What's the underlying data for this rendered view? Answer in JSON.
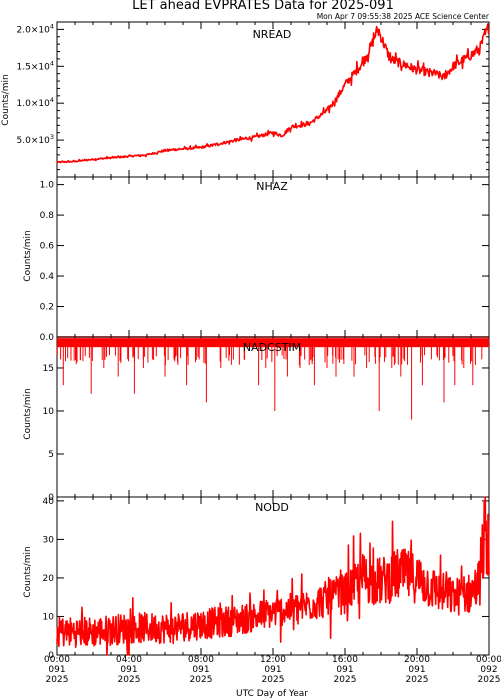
{
  "title": "LET ahead EVPRATES Data for 2025-091",
  "stamp": "Mon Apr  7 09:55:38 2025 ACE Science Center",
  "xlabel": "UTC Day of Year",
  "colors": {
    "trace": "#ff0000",
    "panel_label": "#0000cc",
    "axis": "#000000"
  },
  "time_ticks": [
    {
      "h": 0,
      "l1": "00:00",
      "l2": "091",
      "l3": "2025"
    },
    {
      "h": 4,
      "l1": "04:00",
      "l2": "091",
      "l3": "2025"
    },
    {
      "h": 8,
      "l1": "08:00",
      "l2": "091",
      "l3": "2025"
    },
    {
      "h": 12,
      "l1": "12:00",
      "l2": "091",
      "l3": "2025"
    },
    {
      "h": 16,
      "l1": "16:00",
      "l2": "091",
      "l3": "2025"
    },
    {
      "h": 20,
      "l1": "20:00",
      "l2": "091",
      "l3": "2025"
    },
    {
      "h": 24,
      "l1": "00:00",
      "l2": "092",
      "l3": "2025"
    }
  ],
  "chart_data": [
    {
      "type": "line",
      "name": "NREAD",
      "ylabel": "Counts/min",
      "ylim": [
        0,
        21000
      ],
      "ytick_labels": [
        {
          "v": 5000,
          "m": "5.0",
          "e": "3"
        },
        {
          "v": 10000,
          "m": "1.0",
          "e": "4"
        },
        {
          "v": 15000,
          "m": "1.5",
          "e": "4"
        },
        {
          "v": 20000,
          "m": "2.0",
          "e": "4"
        }
      ],
      "x_hours": [
        0,
        1,
        2,
        3,
        4,
        5,
        6,
        7,
        8,
        9,
        10,
        11,
        12,
        12.5,
        13,
        14,
        15,
        15.5,
        16,
        17,
        17.5,
        17.8,
        18,
        18.5,
        19,
        20,
        21,
        21.5,
        22,
        23,
        23.5,
        24
      ],
      "values": [
        2000,
        2100,
        2400,
        2600,
        2800,
        3000,
        3600,
        3800,
        4000,
        4500,
        5000,
        5400,
        6000,
        5600,
        6800,
        7200,
        9000,
        10500,
        12500,
        15500,
        18000,
        20000,
        19000,
        16000,
        15500,
        14500,
        14000,
        13500,
        15000,
        16500,
        17500,
        20500
      ],
      "noise": 0.05
    },
    {
      "type": "line",
      "name": "NHAZ",
      "ylabel": "Counts/min",
      "ylim": [
        0,
        1.05
      ],
      "yticks": [
        0.0,
        0.2,
        0.4,
        0.6,
        0.8,
        1.0
      ],
      "ytick_labels": [
        "0.0",
        "0.2",
        "0.4",
        "0.6",
        "0.8",
        "1.0"
      ],
      "x_hours": [
        0,
        24
      ],
      "values": [
        0,
        0
      ]
    },
    {
      "type": "line",
      "name": "NADCSTIM",
      "ylabel": "Counts/min",
      "ylim": [
        0,
        18.6
      ],
      "yticks": [
        0,
        5,
        10,
        15
      ],
      "ytick_labels": [
        "0",
        "5",
        "10",
        "15"
      ],
      "baseline": 18,
      "dips": [
        [
          0.2,
          16
        ],
        [
          0.35,
          13
        ],
        [
          1.3,
          16
        ],
        [
          1.9,
          12
        ],
        [
          2.6,
          15
        ],
        [
          3.4,
          14
        ],
        [
          4.3,
          12
        ],
        [
          4.8,
          15
        ],
        [
          5.3,
          16
        ],
        [
          6.0,
          14
        ],
        [
          6.5,
          16
        ],
        [
          7.2,
          13
        ],
        [
          7.9,
          16
        ],
        [
          8.3,
          11
        ],
        [
          9.1,
          15
        ],
        [
          9.8,
          16
        ],
        [
          10.4,
          16
        ],
        [
          11.2,
          13
        ],
        [
          11.6,
          15
        ],
        [
          12.1,
          10
        ],
        [
          12.8,
          14
        ],
        [
          13.5,
          15
        ],
        [
          14.3,
          13
        ],
        [
          15.0,
          15
        ],
        [
          15.5,
          14
        ],
        [
          15.9,
          16
        ],
        [
          16.5,
          14
        ],
        [
          17.2,
          15
        ],
        [
          17.9,
          10
        ],
        [
          18.6,
          15
        ],
        [
          19.1,
          14
        ],
        [
          19.7,
          9
        ],
        [
          20.3,
          13
        ],
        [
          20.8,
          16
        ],
        [
          21.5,
          11
        ],
        [
          22.1,
          13
        ],
        [
          22.6,
          15
        ],
        [
          23.1,
          13
        ],
        [
          23.6,
          16
        ]
      ]
    },
    {
      "type": "line",
      "name": "NODD",
      "ylabel": "Counts/min",
      "ylim": [
        0,
        41
      ],
      "yticks": [
        0,
        10,
        20,
        30,
        40
      ],
      "ytick_labels": [
        "0",
        "10",
        "20",
        "30",
        "40"
      ],
      "x_hours": [
        0,
        2,
        4,
        6,
        8,
        10,
        12,
        14,
        16,
        17,
        18,
        19,
        20,
        21,
        22,
        23,
        23.6,
        23.8,
        24
      ],
      "values": [
        6,
        6,
        7,
        7,
        8,
        9,
        11,
        13,
        16,
        20,
        19,
        21,
        20,
        17,
        15,
        16,
        20,
        36,
        27
      ],
      "noise": 0.3
    }
  ]
}
